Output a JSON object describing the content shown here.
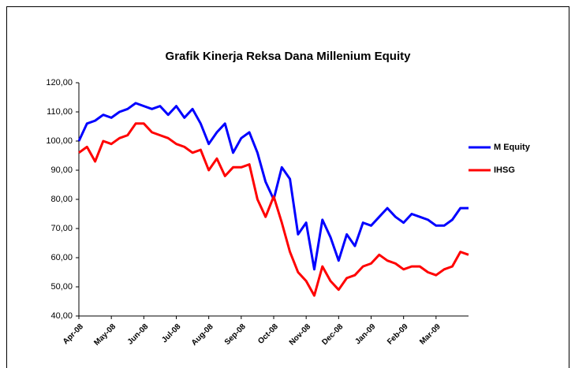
{
  "chart_data": {
    "type": "line",
    "title": "Grafik Kinerja Reksa Dana Millenium Equity",
    "categories": [
      "Apr-08",
      null,
      null,
      null,
      "May-08",
      null,
      null,
      null,
      "Jun-08",
      null,
      null,
      null,
      "Jul-08",
      null,
      null,
      null,
      "Aug-08",
      null,
      null,
      null,
      "Sep-08",
      null,
      null,
      null,
      "Oct-08",
      null,
      null,
      null,
      "Nov-08",
      null,
      null,
      null,
      "Dec-08",
      null,
      null,
      null,
      "Jan-09",
      null,
      null,
      null,
      "Feb-09",
      null,
      null,
      null,
      "Mar-09",
      null,
      null,
      null,
      null
    ],
    "series": [
      {
        "name": "M Equity",
        "color": "#0000ff",
        "values": [
          100,
          106,
          107,
          109,
          108,
          110,
          111,
          113,
          112,
          111,
          112,
          109,
          112,
          108,
          111,
          106,
          99,
          103,
          106,
          96,
          101,
          103,
          96,
          86,
          80,
          91,
          87,
          68,
          72,
          56,
          73,
          67,
          59,
          68,
          64,
          72,
          71,
          74,
          77,
          74,
          72,
          75,
          74,
          73,
          71,
          71,
          73,
          77,
          77
        ]
      },
      {
        "name": "IHSG",
        "color": "#ff0000",
        "values": [
          96,
          98,
          93,
          100,
          99,
          101,
          102,
          106,
          106,
          103,
          102,
          101,
          99,
          98,
          96,
          97,
          90,
          94,
          88,
          91,
          91,
          92,
          80,
          74,
          81,
          72,
          62,
          55,
          52,
          47,
          57,
          52,
          49,
          53,
          54,
          57,
          58,
          61,
          59,
          58,
          56,
          57,
          57,
          55,
          54,
          56,
          57,
          62,
          61
        ]
      }
    ],
    "ylim": [
      40,
      120
    ],
    "yticks": [
      {
        "value": 40,
        "label": "40,00"
      },
      {
        "value": 50,
        "label": "50,00"
      },
      {
        "value": 60,
        "label": "60,00"
      },
      {
        "value": 70,
        "label": "70,00"
      },
      {
        "value": 80,
        "label": "80,00"
      },
      {
        "value": 90,
        "label": "90,00"
      },
      {
        "value": 100,
        "label": "100,00"
      },
      {
        "value": 110,
        "label": "110,00"
      },
      {
        "value": 120,
        "label": "120,00"
      }
    ],
    "legend": "right"
  }
}
